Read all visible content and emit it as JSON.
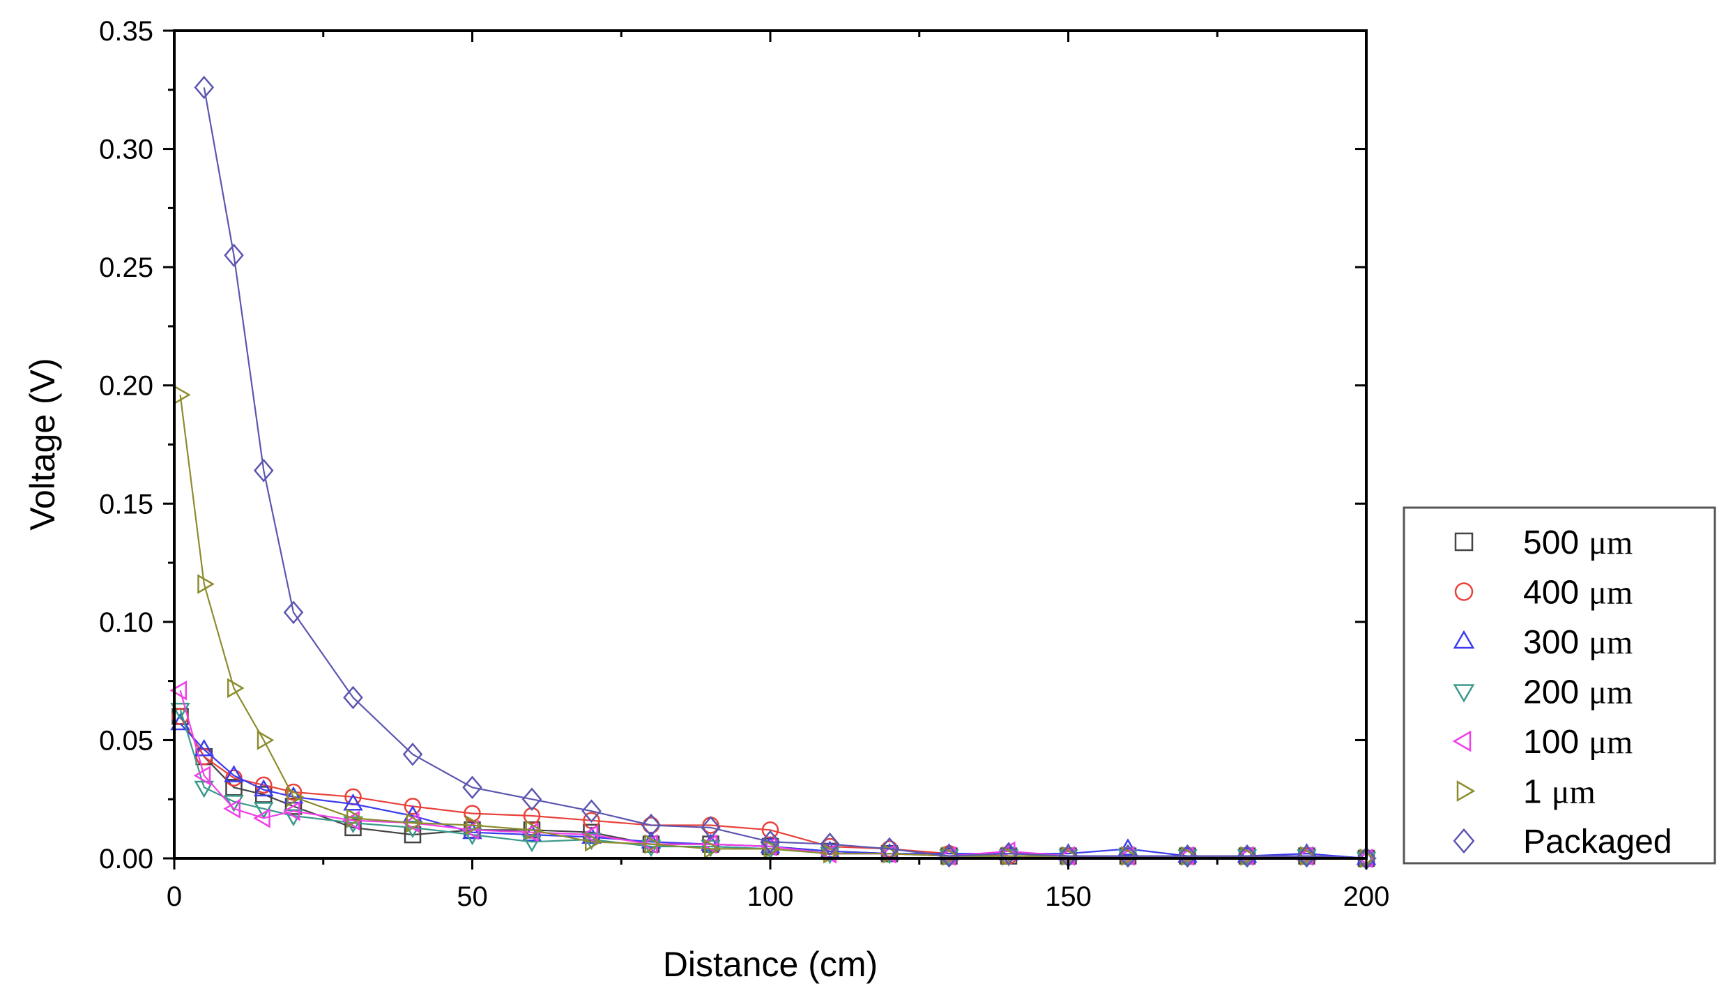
{
  "chart_data": {
    "type": "line",
    "xlabel": "Distance (cm)",
    "ylabel": "Voltage (V)",
    "xlim": [
      0,
      200
    ],
    "ylim": [
      0,
      0.35
    ],
    "xticks": [
      0,
      50,
      100,
      150,
      200
    ],
    "xtick_labels": [
      "0",
      "50",
      "100",
      "150",
      "200"
    ],
    "yticks": [
      0,
      0.05,
      0.1,
      0.15,
      0.2,
      0.25,
      0.3,
      0.35
    ],
    "ytick_labels": [
      "0.00",
      "0.05",
      "0.10",
      "0.15",
      "0.20",
      "0.25",
      "0.30",
      "0.35"
    ],
    "grid": false,
    "legend_position": "right",
    "x": [
      1,
      5,
      10,
      15,
      20,
      30,
      40,
      50,
      60,
      70,
      80,
      90,
      100,
      110,
      120,
      130,
      140,
      150,
      160,
      170,
      180,
      190,
      200
    ],
    "series": [
      {
        "name": "500 μm",
        "label_number": "500",
        "label_unit": "μm",
        "marker": "square",
        "color": "#444444",
        "values": [
          0.06,
          0.043,
          0.03,
          0.027,
          0.022,
          0.013,
          0.01,
          0.012,
          0.012,
          0.011,
          0.006,
          0.006,
          0.005,
          0.003,
          0.002,
          0.001,
          0.001,
          0.001,
          0.001,
          0.001,
          0.001,
          0.001,
          0.0
        ]
      },
      {
        "name": "400 μm",
        "label_number": "400",
        "label_unit": "μm",
        "marker": "circle",
        "color": "#e8413a",
        "values": [
          0.06,
          0.043,
          0.034,
          0.031,
          0.028,
          0.026,
          0.022,
          0.019,
          0.018,
          0.016,
          0.014,
          0.014,
          0.012,
          0.005,
          0.004,
          0.002,
          0.001,
          0.001,
          0.001,
          0.001,
          0.001,
          0.001,
          0.0
        ]
      },
      {
        "name": "300 μm",
        "label_number": "300",
        "label_unit": "μm",
        "marker": "triangle-up",
        "color": "#3b3bf0",
        "values": [
          0.057,
          0.046,
          0.035,
          0.029,
          0.026,
          0.023,
          0.018,
          0.011,
          0.01,
          0.009,
          0.007,
          0.006,
          0.005,
          0.003,
          0.002,
          0.002,
          0.002,
          0.002,
          0.004,
          0.001,
          0.001,
          0.002,
          0.0
        ]
      },
      {
        "name": "200 μm",
        "label_number": "200",
        "label_unit": "μm",
        "marker": "triangle-down",
        "color": "#3a9a8a",
        "values": [
          0.063,
          0.03,
          0.024,
          0.021,
          0.018,
          0.015,
          0.013,
          0.01,
          0.007,
          0.008,
          0.005,
          0.005,
          0.004,
          0.002,
          0.002,
          0.001,
          0.001,
          0.001,
          0.001,
          0.001,
          0.001,
          0.001,
          0.0
        ]
      },
      {
        "name": "100 μm",
        "label_number": "100",
        "label_unit": "μm",
        "marker": "triangle-left",
        "color": "#f03ee8",
        "values": [
          0.071,
          0.035,
          0.021,
          0.017,
          0.02,
          0.016,
          0.015,
          0.012,
          0.011,
          0.01,
          0.006,
          0.006,
          0.005,
          0.002,
          0.002,
          0.001,
          0.003,
          0.001,
          0.001,
          0.001,
          0.001,
          0.001,
          0.0
        ]
      },
      {
        "name": "1 μm",
        "label_number": "1",
        "label_unit": "μm",
        "marker": "triangle-right",
        "color": "#8c8c2e",
        "values": [
          0.196,
          0.116,
          0.072,
          0.05,
          0.026,
          0.017,
          0.015,
          0.014,
          0.012,
          0.007,
          0.006,
          0.004,
          0.004,
          0.002,
          0.002,
          0.001,
          0.001,
          0.001,
          0.001,
          0.001,
          0.001,
          0.001,
          0.0
        ]
      },
      {
        "name": "Packaged",
        "label_number": "Packaged",
        "label_unit": "",
        "marker": "diamond",
        "color": "#5b56b0",
        "values": [
          null,
          0.326,
          0.255,
          0.164,
          0.104,
          0.068,
          0.044,
          0.03,
          0.025,
          0.02,
          0.014,
          0.013,
          0.007,
          0.006,
          0.004,
          0.001,
          0.002,
          0.001,
          0.001,
          0.001,
          0.001,
          0.001,
          0.0
        ]
      }
    ]
  }
}
